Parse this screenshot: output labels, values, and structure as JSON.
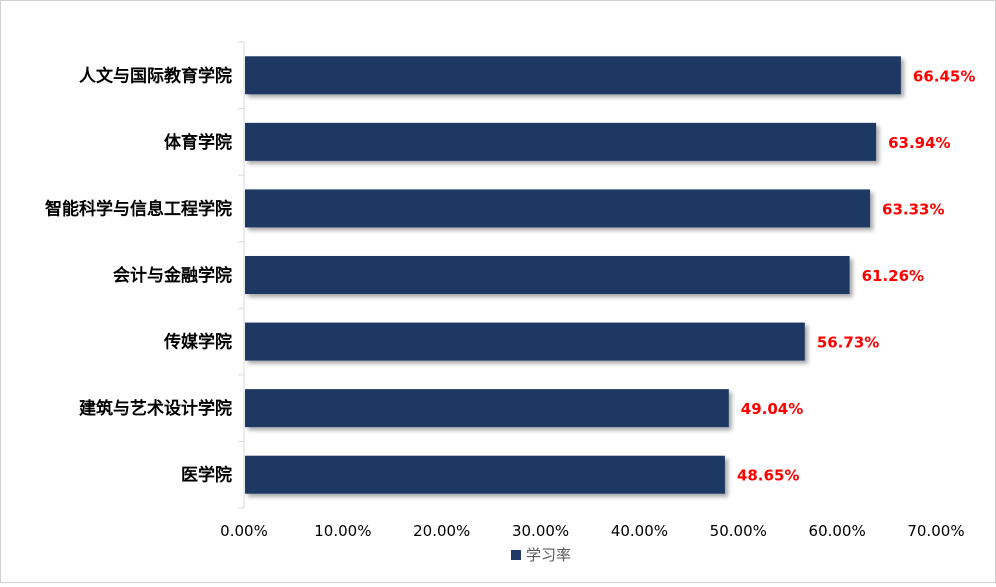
{
  "chart_data": {
    "type": "bar",
    "orientation": "horizontal",
    "categories": [
      "人文与国际教育学院",
      "体育学院",
      "智能科学与信息工程学院",
      "会计与金融学院",
      "传媒学院",
      "建筑与艺术设计学院",
      "医学院"
    ],
    "series": [
      {
        "name": "学习率",
        "values": [
          66.45,
          63.94,
          63.33,
          61.26,
          56.73,
          49.04,
          48.65
        ],
        "data_labels": [
          "66.45%",
          "63.94%",
          "63.33%",
          "61.26%",
          "56.73%",
          "49.04%",
          "48.65%"
        ]
      }
    ],
    "xlim": [
      0,
      70
    ],
    "x_ticks": [
      "0.00%",
      "10.00%",
      "20.00%",
      "30.00%",
      "40.00%",
      "50.00%",
      "60.00%",
      "70.00%"
    ],
    "grid": false,
    "legend_position": "bottom",
    "colors": {
      "bar": "#1F3864",
      "data_label": "#FF0000",
      "axis": "#D9D9D9"
    }
  }
}
